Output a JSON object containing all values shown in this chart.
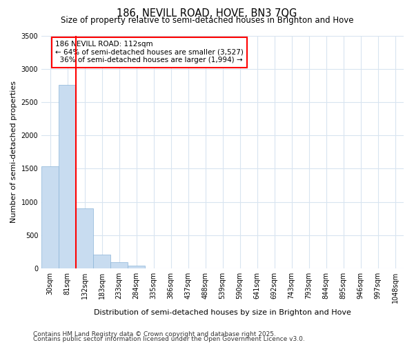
{
  "title_line1": "186, NEVILL ROAD, HOVE, BN3 7QG",
  "title_line2": "Size of property relative to semi-detached houses in Brighton and Hove",
  "xlabel": "Distribution of semi-detached houses by size in Brighton and Hove",
  "ylabel": "Number of semi-detached properties",
  "categories": [
    "30sqm",
    "81sqm",
    "132sqm",
    "183sqm",
    "233sqm",
    "284sqm",
    "335sqm",
    "386sqm",
    "437sqm",
    "488sqm",
    "539sqm",
    "590sqm",
    "641sqm",
    "692sqm",
    "743sqm",
    "793sqm",
    "844sqm",
    "895sqm",
    "946sqm",
    "997sqm",
    "1048sqm"
  ],
  "values": [
    1530,
    2760,
    900,
    205,
    95,
    40,
    5,
    0,
    0,
    0,
    0,
    0,
    0,
    0,
    0,
    0,
    0,
    0,
    0,
    0,
    0
  ],
  "bar_color": "#c8dcf0",
  "bar_edge_color": "#8ab4d8",
  "red_line_label": "186 NEVILL ROAD: 112sqm",
  "pct_smaller": 64,
  "pct_smaller_n": 3527,
  "pct_larger": 36,
  "pct_larger_n": 1994,
  "ylim": [
    0,
    3500
  ],
  "yticks": [
    0,
    500,
    1000,
    1500,
    2000,
    2500,
    3000,
    3500
  ],
  "footnote1": "Contains HM Land Registry data © Crown copyright and database right 2025.",
  "footnote2": "Contains public sector information licensed under the Open Government Licence v3.0.",
  "background_color": "#ffffff",
  "plot_bg_color": "#ffffff",
  "grid_color": "#d8e4f0",
  "title_fontsize": 10.5,
  "subtitle_fontsize": 8.5,
  "axis_label_fontsize": 8,
  "tick_fontsize": 7,
  "annotation_fontsize": 7.5,
  "footnote_fontsize": 6.5
}
